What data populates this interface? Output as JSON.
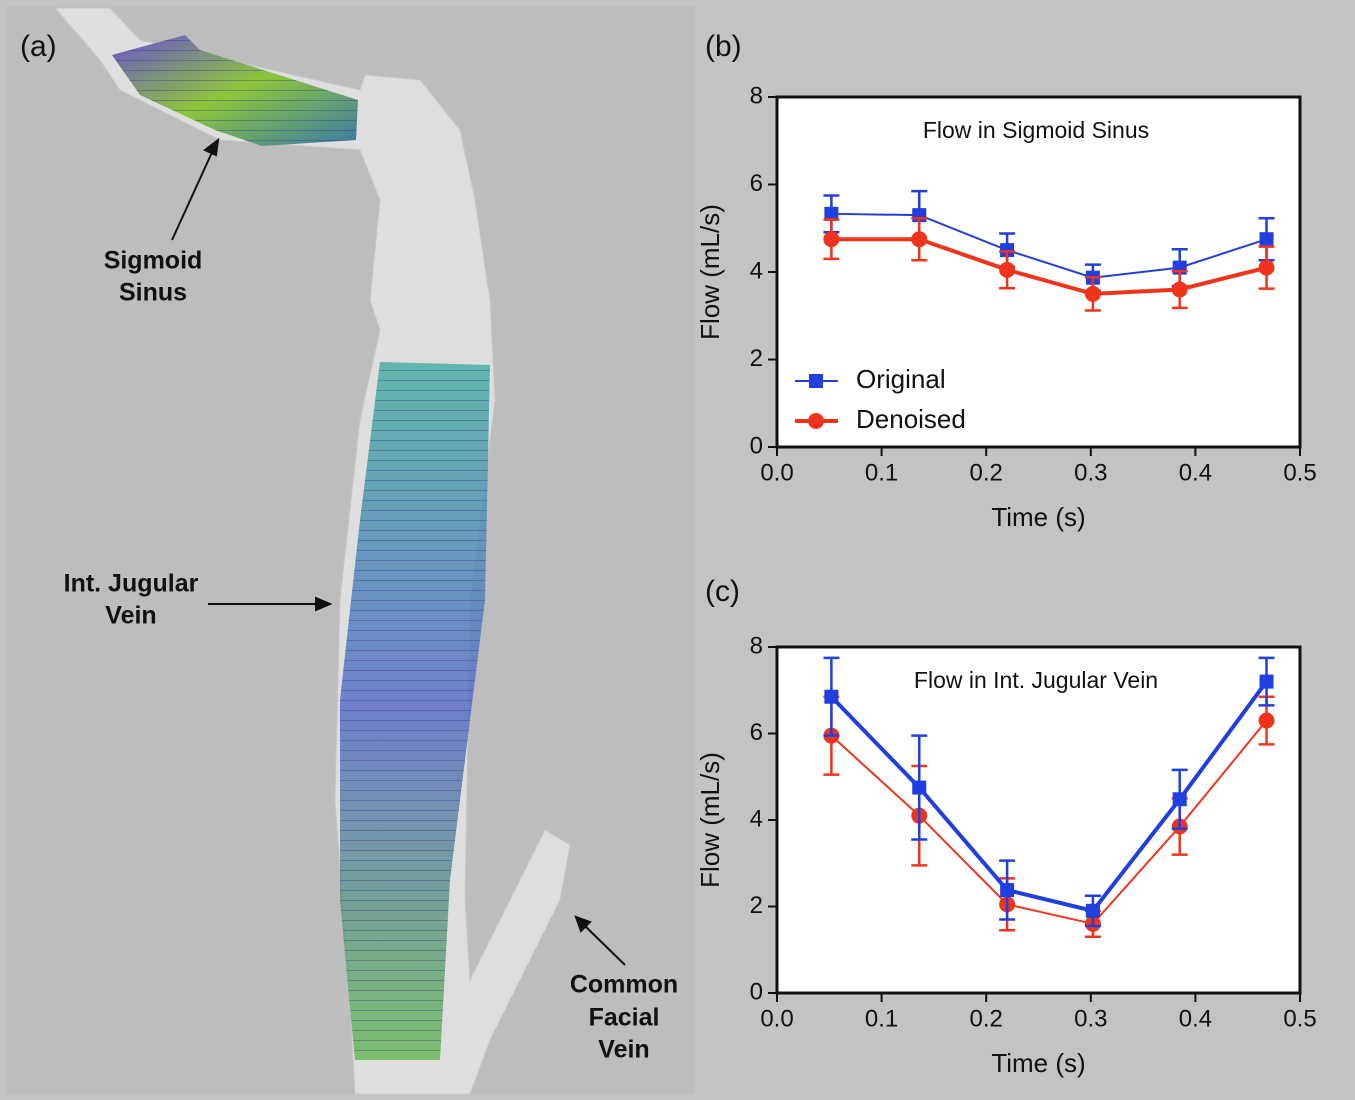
{
  "panel_a": {
    "label": "(a)",
    "annotations": [
      [
        "Sigmoid",
        "Sinus"
      ],
      [
        "Int. Jugular",
        "Vein"
      ],
      [
        "Common",
        "Facial",
        "Vein"
      ]
    ]
  },
  "chart_data": [
    {
      "type": "line",
      "panel_label": "(b)",
      "title": "Flow in Sigmoid Sinus",
      "x_label": "Time (s)",
      "y_label": "Flow (mL/s)",
      "x": [
        0.052,
        0.136,
        0.22,
        0.302,
        0.385,
        0.468
      ],
      "xlim": [
        0,
        0.5
      ],
      "xticks": [
        {
          "value": 0,
          "label": "0.0"
        },
        0.1,
        0.2,
        0.3,
        0.4,
        0.5
      ],
      "ylim": [
        0,
        8
      ],
      "yticks": [
        0,
        2,
        4,
        6,
        8
      ],
      "legend": "lower left",
      "series": [
        {
          "name": "Original",
          "color": "#1f3fe0",
          "marker": "square",
          "line_width": 2,
          "values": [
            5.33,
            5.3,
            4.5,
            3.87,
            4.1,
            4.75
          ],
          "errors": [
            0.42,
            0.55,
            0.38,
            0.3,
            0.42,
            0.48
          ]
        },
        {
          "name": "Denoised",
          "color": "#f0341c",
          "marker": "circle",
          "line_width": 4,
          "values": [
            4.75,
            4.75,
            4.05,
            3.5,
            3.6,
            4.1
          ],
          "errors": [
            0.45,
            0.48,
            0.42,
            0.38,
            0.42,
            0.48
          ]
        }
      ]
    },
    {
      "type": "line",
      "panel_label": "(c)",
      "title": "Flow in Int. Jugular Vein",
      "x_label": "Time (s)",
      "y_label": "Flow (mL/s)",
      "x": [
        0.052,
        0.136,
        0.22,
        0.302,
        0.385,
        0.468
      ],
      "xlim": [
        0,
        0.5
      ],
      "xticks": [
        {
          "value": 0,
          "label": "0.0"
        },
        0.1,
        0.2,
        0.3,
        0.4,
        0.5
      ],
      "ylim": [
        0,
        8
      ],
      "yticks": [
        0,
        2,
        4,
        6,
        8
      ],
      "series": [
        {
          "color": "#f0341c",
          "marker": "circle",
          "line_width": 2,
          "values": [
            5.95,
            4.1,
            2.05,
            1.6,
            3.85,
            6.3
          ],
          "errors": [
            0.9,
            1.15,
            0.6,
            0.3,
            0.65,
            0.55
          ]
        },
        {
          "color": "#1f3fe0",
          "marker": "square",
          "line_width": 4,
          "values": [
            6.85,
            4.75,
            2.38,
            1.9,
            4.48,
            7.2
          ],
          "errors": [
            0.9,
            1.2,
            0.68,
            0.35,
            0.68,
            0.55
          ]
        }
      ]
    }
  ]
}
